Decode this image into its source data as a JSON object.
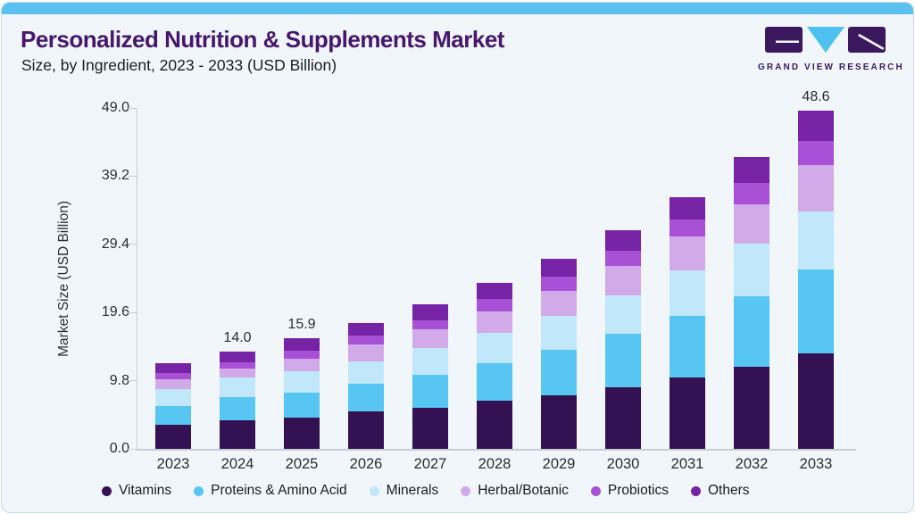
{
  "page": {
    "title": "Personalized Nutrition & Supplements Market",
    "subtitle": "Size, by Ingredient, 2023 - 2033 (USD Billion)",
    "background_color": "#f0f6fa",
    "accent_bar_color": "#5ac0ee",
    "title_color": "#46176b"
  },
  "logo": {
    "text": "GRAND VIEW RESEARCH",
    "mark_dark_color": "#3c195e",
    "mark_blue_color": "#4ec1f0"
  },
  "chart_data": {
    "type": "bar",
    "subtype": "stacked-vertical",
    "title": "Personalized Nutrition & Supplements Market Size, by Ingredient, 2023 - 2033 (USD Billion)",
    "ylabel": "Market Size (USD Billion)",
    "xlabel": "",
    "ylim": [
      0,
      49
    ],
    "y_ticks": [
      "0.0",
      "9.8",
      "19.6",
      "29.4",
      "39.2",
      "49.0"
    ],
    "y_tick_values": [
      0,
      9.8,
      19.6,
      29.4,
      39.2,
      49
    ],
    "grid": "off",
    "legend_position": "bottom",
    "categories": [
      "2023",
      "2024",
      "2025",
      "2026",
      "2027",
      "2028",
      "2029",
      "2030",
      "2031",
      "2032",
      "2033"
    ],
    "series": [
      {
        "name": "Vitamins",
        "color": "#331153",
        "values": [
          3.4,
          4.1,
          4.5,
          5.4,
          5.9,
          6.9,
          7.7,
          8.9,
          10.2,
          11.8,
          13.7
        ]
      },
      {
        "name": "Proteins & Amino Acid",
        "color": "#58c6f2",
        "values": [
          2.8,
          3.4,
          3.6,
          3.9,
          4.8,
          5.4,
          6.6,
          7.6,
          8.9,
          10.1,
          12.1
        ]
      },
      {
        "name": "Minerals",
        "color": "#c0e7fa",
        "values": [
          2.4,
          2.7,
          3.0,
          3.3,
          3.8,
          4.4,
          4.8,
          5.5,
          6.6,
          7.6,
          8.3
        ]
      },
      {
        "name": "Herbal/Botanic",
        "color": "#d2aaea",
        "values": [
          1.4,
          1.4,
          1.9,
          2.4,
          2.7,
          3.1,
          3.6,
          4.3,
          4.8,
          5.6,
          6.7
        ]
      },
      {
        "name": "Probiotics",
        "color": "#a851d6",
        "values": [
          0.9,
          0.9,
          1.1,
          1.3,
          1.3,
          1.7,
          2.0,
          2.2,
          2.5,
          3.1,
          3.4
        ]
      },
      {
        "name": "Others",
        "color": "#7623a6",
        "values": [
          1.4,
          1.5,
          1.8,
          1.8,
          2.3,
          2.3,
          2.6,
          2.9,
          3.2,
          3.8,
          4.4
        ]
      }
    ],
    "totals_shown": {
      "2024": "14.0",
      "2025": "15.9",
      "2033": "48.6"
    }
  }
}
